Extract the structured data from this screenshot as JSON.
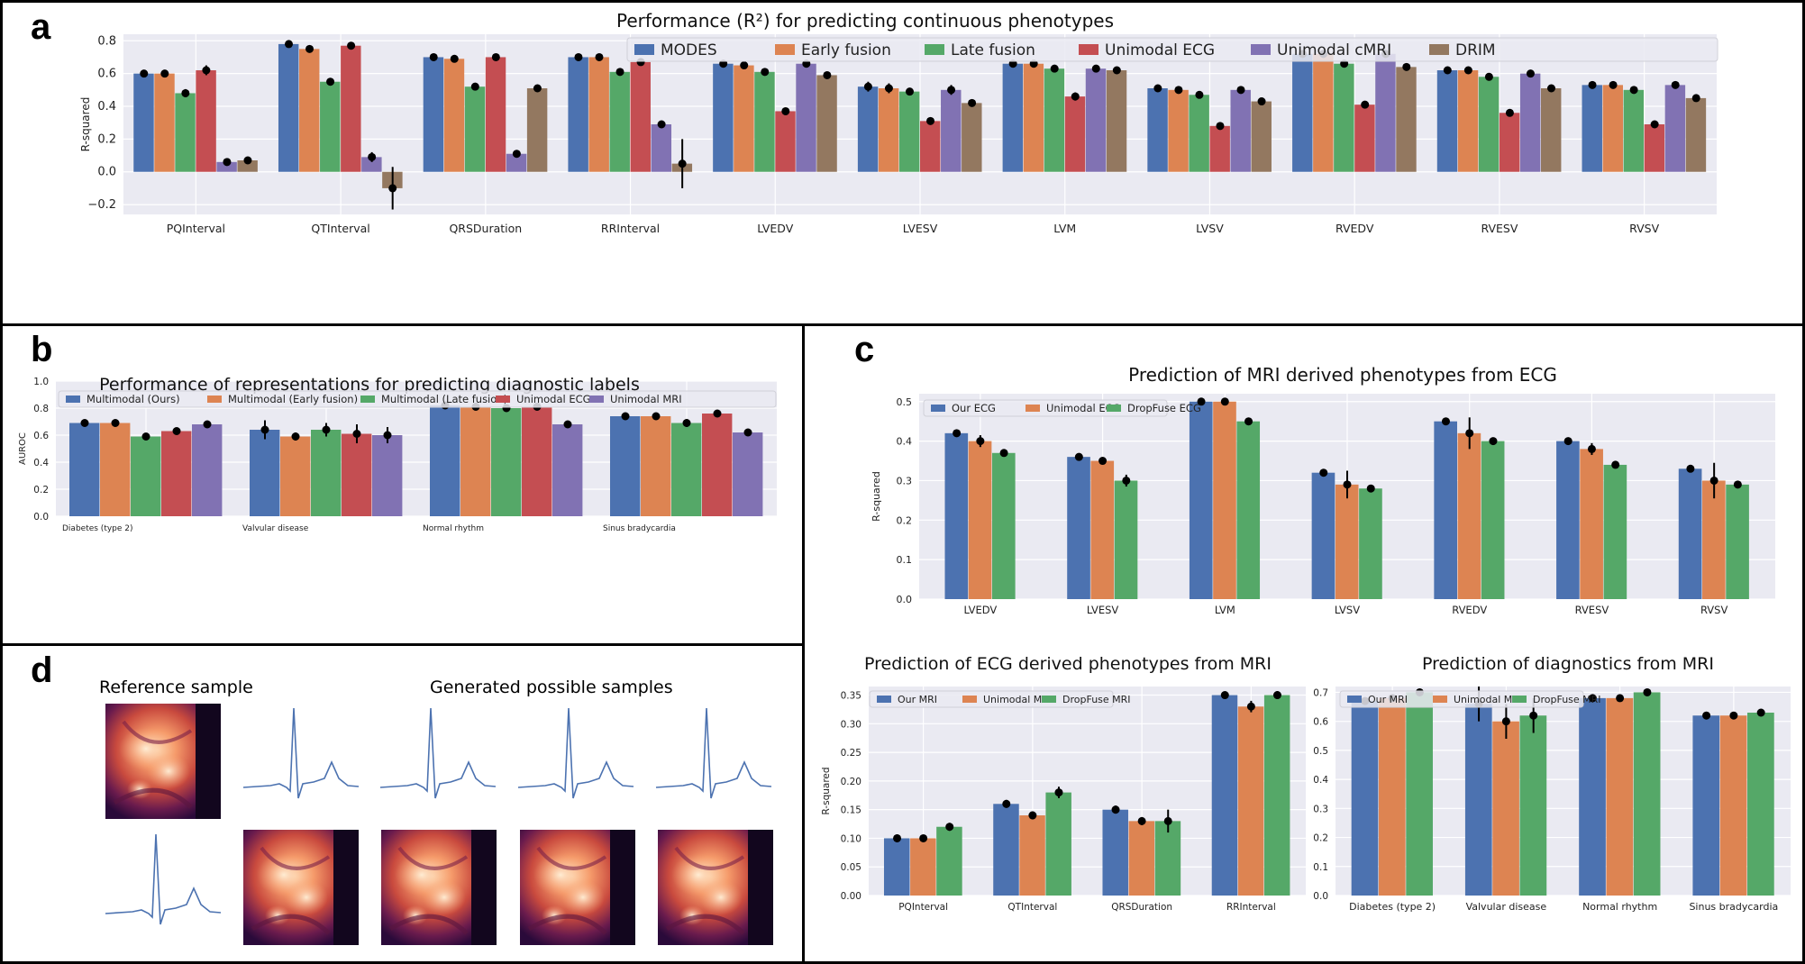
{
  "labels": {
    "a": "a",
    "b": "b",
    "c": "c",
    "d": "d"
  },
  "colors": [
    "#4c72b0",
    "#dd8452",
    "#55a868",
    "#c44e52",
    "#8172b3",
    "#937860"
  ],
  "panel_d": {
    "reference_title": "Reference sample",
    "generated_title": "Generated possible samples"
  },
  "chart_data": [
    {
      "id": "a",
      "type": "bar",
      "title": "Performance (R²) for predicting continuous phenotypes",
      "xlabel": "",
      "ylabel": "R-squared",
      "ylim": [
        -0.26,
        0.84
      ],
      "yticks": [
        -0.2,
        0.0,
        0.2,
        0.4,
        0.6,
        0.8
      ],
      "ytick_labels": [
        "−0.2",
        "0.0",
        "0.2",
        "0.4",
        "0.6",
        "0.8"
      ],
      "legend_position": "top-right",
      "categories": [
        "PQInterval",
        "QTInterval",
        "QRSDuration",
        "RRInterval",
        "LVEDV",
        "LVESV",
        "LVM",
        "LVSV",
        "RVEDV",
        "RVESV",
        "RVSV"
      ],
      "series": [
        {
          "name": "MODES",
          "values": [
            0.6,
            0.78,
            0.7,
            0.7,
            0.66,
            0.52,
            0.66,
            0.51,
            0.72,
            0.62,
            0.53
          ],
          "errors": [
            0.015,
            0.01,
            0.015,
            0.02,
            0.01,
            0.03,
            0.01,
            0.01,
            0.01,
            0.01,
            0.015
          ]
        },
        {
          "name": "Early fusion",
          "values": [
            0.6,
            0.75,
            0.69,
            0.7,
            0.65,
            0.51,
            0.66,
            0.5,
            0.72,
            0.62,
            0.53
          ],
          "errors": [
            0.02,
            0.01,
            0.015,
            0.015,
            0.01,
            0.03,
            0.01,
            0.01,
            0.01,
            0.01,
            0.01
          ]
        },
        {
          "name": "Late fusion",
          "values": [
            0.48,
            0.55,
            0.52,
            0.61,
            0.61,
            0.49,
            0.63,
            0.47,
            0.66,
            0.58,
            0.5
          ],
          "errors": [
            0.025,
            0.02,
            0.01,
            0.015,
            0.01,
            0.02,
            0.01,
            0.01,
            0.01,
            0.01,
            0.01
          ]
        },
        {
          "name": "Unimodal ECG",
          "values": [
            0.62,
            0.77,
            0.7,
            0.67,
            0.37,
            0.31,
            0.46,
            0.28,
            0.41,
            0.36,
            0.29
          ],
          "errors": [
            0.03,
            0.01,
            0.01,
            0.02,
            0.02,
            0.02,
            0.025,
            0.02,
            0.02,
            0.01,
            0.02
          ]
        },
        {
          "name": "Unimodal cMRI",
          "values": [
            0.06,
            0.09,
            0.11,
            0.29,
            0.66,
            0.5,
            0.63,
            0.5,
            0.72,
            0.6,
            0.53
          ],
          "errors": [
            0.015,
            0.03,
            0.01,
            0.02,
            0.01,
            0.03,
            0.01,
            0.01,
            0.01,
            0.01,
            0.01
          ]
        },
        {
          "name": "DRIM",
          "values": [
            0.07,
            -0.1,
            0.51,
            0.05,
            0.59,
            0.42,
            0.62,
            0.43,
            0.64,
            0.51,
            0.45
          ],
          "errors": [
            0.01,
            0.13,
            0.01,
            0.15,
            0.01,
            0.015,
            0.01,
            0.02,
            0.01,
            0.015,
            0.02
          ]
        }
      ]
    },
    {
      "id": "b",
      "type": "bar",
      "title": "Performance of representations for predicting diagnostic labels",
      "xlabel": "",
      "ylabel": "AUROC",
      "ylim": [
        0,
        1.0
      ],
      "yticks": [
        0,
        0.2,
        0.4,
        0.6,
        0.8,
        1.0
      ],
      "ytick_labels": [
        "0.0",
        "0.2",
        "0.4",
        "0.6",
        "0.8",
        "1.0"
      ],
      "legend_position": "top",
      "categories": [
        "Diabetes (type 2)",
        "Valvular disease",
        "Normal rhythm",
        "Sinus bradycardia"
      ],
      "series": [
        {
          "name": "Multimodal (Ours)",
          "values": [
            0.69,
            0.64,
            0.82,
            0.74
          ],
          "errors": [
            0.005,
            0.07,
            0.005,
            0.005
          ]
        },
        {
          "name": "Multimodal (Early fusion)",
          "values": [
            0.69,
            0.59,
            0.81,
            0.74
          ],
          "errors": [
            0.005,
            0.03,
            0.005,
            0.005
          ]
        },
        {
          "name": "Multimodal (Late fusion)",
          "values": [
            0.59,
            0.64,
            0.8,
            0.69
          ],
          "errors": [
            0.015,
            0.05,
            0.005,
            0.03
          ]
        },
        {
          "name": "Unimodal ECG",
          "values": [
            0.63,
            0.61,
            0.81,
            0.76
          ],
          "errors": [
            0.005,
            0.07,
            0.005,
            0.005
          ]
        },
        {
          "name": "Unimodal MRI",
          "values": [
            0.68,
            0.6,
            0.68,
            0.62
          ],
          "errors": [
            0.005,
            0.06,
            0.005,
            0.005
          ]
        }
      ]
    },
    {
      "id": "c1",
      "type": "bar",
      "title": "Prediction of MRI derived phenotypes from ECG",
      "xlabel": "",
      "ylabel": "R-squared",
      "ylim": [
        0,
        0.52
      ],
      "yticks": [
        0,
        0.1,
        0.2,
        0.3,
        0.4,
        0.5
      ],
      "ytick_labels": [
        "0.0",
        "0.1",
        "0.2",
        "0.3",
        "0.4",
        "0.5"
      ],
      "legend_position": "top-left",
      "categories": [
        "LVEDV",
        "LVESV",
        "LVM",
        "LVSV",
        "RVEDV",
        "RVESV",
        "RVSV"
      ],
      "series": [
        {
          "name": "Our ECG",
          "values": [
            0.42,
            0.36,
            0.5,
            0.32,
            0.45,
            0.4,
            0.33
          ],
          "errors": [
            0.003,
            0.003,
            0.005,
            0.003,
            0.003,
            0.003,
            0.003
          ]
        },
        {
          "name": "Unimodal ECG",
          "values": [
            0.4,
            0.35,
            0.5,
            0.29,
            0.42,
            0.38,
            0.3
          ],
          "errors": [
            0.015,
            0.003,
            0.005,
            0.035,
            0.04,
            0.015,
            0.045
          ]
        },
        {
          "name": "DropFuse ECG",
          "values": [
            0.37,
            0.3,
            0.45,
            0.28,
            0.4,
            0.34,
            0.29
          ],
          "errors": [
            0.008,
            0.015,
            0.003,
            0.003,
            0.003,
            0.003,
            0.003
          ]
        }
      ]
    },
    {
      "id": "c2",
      "type": "bar",
      "title": "Prediction of ECG derived phenotypes from MRI",
      "xlabel": "",
      "ylabel": "R-squared",
      "ylim": [
        0,
        0.365
      ],
      "yticks": [
        0,
        0.05,
        0.1,
        0.15,
        0.2,
        0.25,
        0.3,
        0.35
      ],
      "ytick_labels": [
        "0.00",
        "0.05",
        "0.10",
        "0.15",
        "0.20",
        "0.25",
        "0.30",
        "0.35"
      ],
      "legend_position": "top-left",
      "categories": [
        "PQInterval",
        "QTInterval",
        "QRSDuration",
        "RRInterval"
      ],
      "series": [
        {
          "name": "Our MRI",
          "values": [
            0.1,
            0.16,
            0.15,
            0.35
          ],
          "errors": [
            0.007,
            0.007,
            0.007,
            0.003
          ]
        },
        {
          "name": "Unimodal MRI",
          "values": [
            0.1,
            0.14,
            0.13,
            0.33
          ],
          "errors": [
            0.005,
            0.007,
            0.007,
            0.01
          ]
        },
        {
          "name": "DropFuse MRI",
          "values": [
            0.12,
            0.18,
            0.13,
            0.35
          ],
          "errors": [
            0.007,
            0.01,
            0.02,
            0.007
          ]
        }
      ]
    },
    {
      "id": "c3",
      "type": "bar",
      "title": "Prediction of diagnostics from MRI",
      "xlabel": "",
      "ylabel": "",
      "ylim": [
        0,
        0.72
      ],
      "yticks": [
        0,
        0.1,
        0.2,
        0.3,
        0.4,
        0.5,
        0.6,
        0.7
      ],
      "ytick_labels": [
        "0.0",
        "0.1",
        "0.2",
        "0.3",
        "0.4",
        "0.5",
        "0.6",
        "0.7"
      ],
      "legend_position": "top-left",
      "categories": [
        "Diabetes (type 2)",
        "Valvular disease",
        "Normal rhythm",
        "Sinus bradycardia"
      ],
      "series": [
        {
          "name": "Our MRI",
          "values": [
            0.67,
            0.66,
            0.68,
            0.62
          ],
          "errors": [
            0.003,
            0.06,
            0.003,
            0.003
          ]
        },
        {
          "name": "Unimodal MRI",
          "values": [
            0.68,
            0.6,
            0.68,
            0.62
          ],
          "errors": [
            0.003,
            0.06,
            0.003,
            0.003
          ]
        },
        {
          "name": "DropFuse MRI",
          "values": [
            0.7,
            0.62,
            0.7,
            0.63
          ],
          "errors": [
            0.003,
            0.06,
            0.003,
            0.003
          ]
        }
      ]
    }
  ]
}
